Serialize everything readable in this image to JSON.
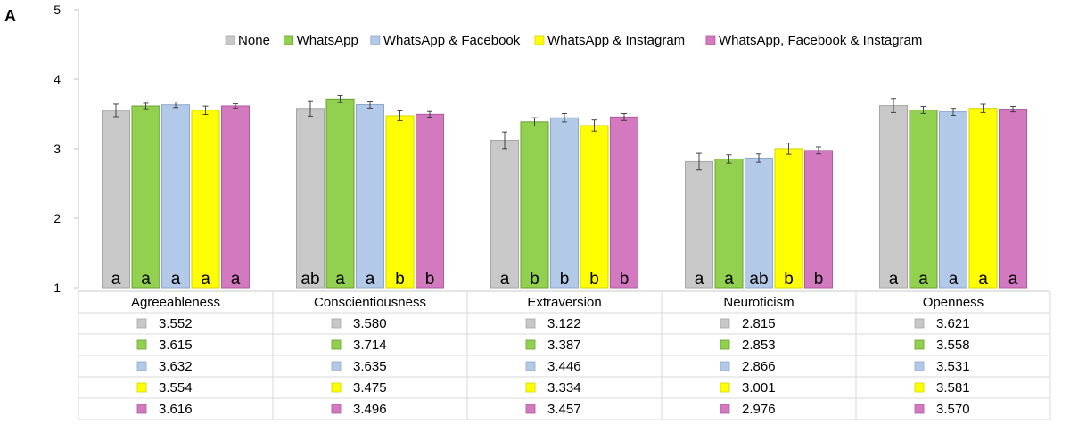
{
  "panel_label": "A",
  "chart_data": {
    "type": "bar",
    "title": "",
    "xlabel": "",
    "ylabel": "",
    "ylim": [
      1,
      5
    ],
    "yticks": [
      "1",
      "2",
      "3",
      "4",
      "5"
    ],
    "grid": false,
    "legend_position": "top",
    "categories": [
      "Agreeableness",
      "Conscientiousness",
      "Extraversion",
      "Neuroticism",
      "Openness"
    ],
    "series": [
      {
        "name": "None",
        "color": "#c8c8c8",
        "stroke": "#a6a6a6",
        "values": [
          3.552,
          3.58,
          3.122,
          2.815,
          3.621
        ],
        "labels": [
          "3.552",
          "3.580",
          "3.122",
          "2.815",
          "3.621"
        ],
        "error": [
          0.09,
          0.11,
          0.12,
          0.12,
          0.1
        ],
        "letters": [
          "a",
          "ab",
          "a",
          "a",
          "a"
        ]
      },
      {
        "name": "WhatsApp",
        "color": "#92d050",
        "stroke": "#6aa02e",
        "values": [
          3.615,
          3.714,
          3.387,
          2.853,
          3.558
        ],
        "labels": [
          "3.615",
          "3.714",
          "3.387",
          "2.853",
          "3.558"
        ],
        "error": [
          0.04,
          0.05,
          0.06,
          0.06,
          0.05
        ],
        "letters": [
          "a",
          "a",
          "b",
          "a",
          "a"
        ]
      },
      {
        "name": "WhatsApp & Facebook",
        "color": "#b3c9e8",
        "stroke": "#8ea7cc",
        "values": [
          3.632,
          3.635,
          3.446,
          2.866,
          3.531
        ],
        "labels": [
          "3.632",
          "3.635",
          "3.446",
          "2.866",
          "3.531"
        ],
        "error": [
          0.04,
          0.05,
          0.06,
          0.06,
          0.05
        ],
        "letters": [
          "a",
          "a",
          "b",
          "ab",
          "a"
        ]
      },
      {
        "name": "WhatsApp & Instagram",
        "color": "#ffff00",
        "stroke": "#d4d400",
        "values": [
          3.554,
          3.475,
          3.334,
          3.001,
          3.581
        ],
        "labels": [
          "3.554",
          "3.475",
          "3.334",
          "3.001",
          "3.581"
        ],
        "error": [
          0.06,
          0.07,
          0.08,
          0.08,
          0.06
        ],
        "letters": [
          "a",
          "b",
          "b",
          "b",
          "a"
        ]
      },
      {
        "name": "WhatsApp, Facebook & Instagram",
        "color": "#d279c0",
        "stroke": "#b05aa0",
        "values": [
          3.616,
          3.496,
          3.457,
          2.976,
          3.57
        ],
        "labels": [
          "3.616",
          "3.496",
          "3.457",
          "2.976",
          "3.570"
        ],
        "error": [
          0.03,
          0.04,
          0.05,
          0.05,
          0.04
        ],
        "letters": [
          "a",
          "b",
          "b",
          "b",
          "a"
        ]
      }
    ]
  }
}
